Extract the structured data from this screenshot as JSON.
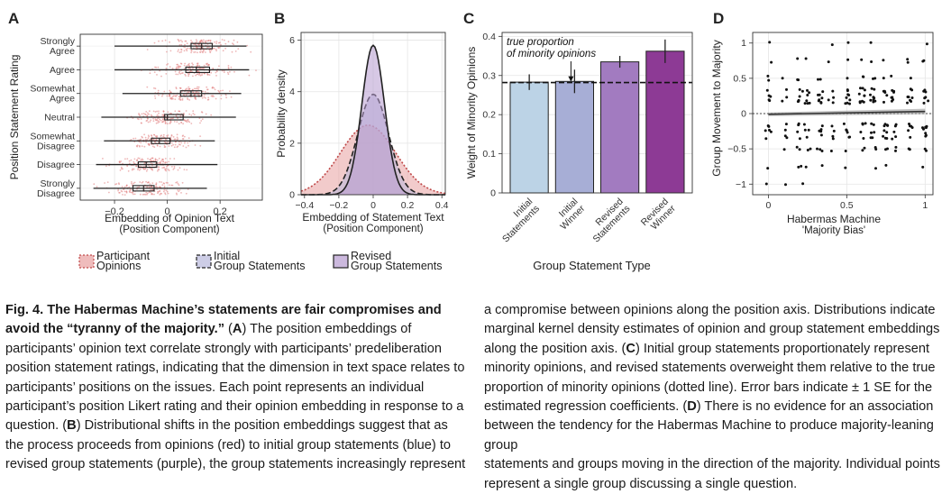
{
  "panel_letters": [
    "A",
    "B",
    "C",
    "D"
  ],
  "chart_data": [
    {
      "panel": "A",
      "type": "scatter",
      "subtype": "horizontal box plots with jittered points",
      "xlabel": "Embedding of Opinion Text",
      "xlabel_sub": "(Position Component)",
      "ylabel": "Position Statement Rating",
      "xlim": [
        -0.33,
        0.36
      ],
      "xticks": [
        -0.2,
        0.0,
        0.2
      ],
      "xtick_labels": [
        "−0.2",
        "0",
        "0.2"
      ],
      "categories": [
        [
          "Strongly",
          "Agree"
        ],
        [
          "Agree"
        ],
        [
          "Somewhat",
          "Agree"
        ],
        [
          "Neutral"
        ],
        [
          "Somewhat",
          "Disagree"
        ],
        [
          "Disagree"
        ],
        [
          "Strongly",
          "Disagree"
        ]
      ],
      "boxes": [
        {
          "whisker_low": -0.2,
          "q1": 0.09,
          "median": 0.13,
          "q3": 0.17,
          "whisker_high": 0.3
        },
        {
          "whisker_low": -0.2,
          "q1": 0.07,
          "median": 0.11,
          "q3": 0.16,
          "whisker_high": 0.31
        },
        {
          "whisker_low": -0.17,
          "q1": 0.05,
          "median": 0.09,
          "q3": 0.13,
          "whisker_high": 0.28
        },
        {
          "whisker_low": -0.25,
          "q1": -0.01,
          "median": 0.0,
          "q3": 0.06,
          "whisker_high": 0.26
        },
        {
          "whisker_low": -0.24,
          "q1": -0.06,
          "median": -0.03,
          "q3": 0.01,
          "whisker_high": 0.18
        },
        {
          "whisker_low": -0.27,
          "q1": -0.11,
          "median": -0.08,
          "q3": -0.04,
          "whisker_high": 0.19
        },
        {
          "whisker_low": -0.28,
          "q1": -0.13,
          "median": -0.09,
          "q3": -0.05,
          "whisker_high": 0.15
        }
      ],
      "point_color": "#e07a7a",
      "grid": true
    },
    {
      "panel": "B",
      "type": "area",
      "subtype": "kernel density estimates",
      "xlabel": "Embedding of Statement Text",
      "xlabel_sub": "(Position Component)",
      "ylabel": "Probability density",
      "xlim": [
        -0.42,
        0.42
      ],
      "ylim": [
        0,
        6.3
      ],
      "xticks": [
        -0.4,
        -0.2,
        0.0,
        0.2,
        0.4
      ],
      "xtick_labels": [
        "−0.4",
        "−0.2",
        "0",
        "0.2",
        "0.4"
      ],
      "yticks": [
        0,
        2,
        4,
        6
      ],
      "series": [
        {
          "name": "Participant Opinions",
          "center": -0.03,
          "sd": 0.16,
          "peak": 2.7,
          "fill": "#e8a0a0",
          "stroke": "#c04a4a",
          "dash": "dotted"
        },
        {
          "name": "Initial Group Statements",
          "center": 0.0,
          "sd": 0.09,
          "peak": 3.9,
          "fill": "#b8b8dc",
          "stroke": "#222222",
          "dash": "dashed"
        },
        {
          "name": "Revised Group Statements",
          "center": 0.0,
          "sd": 0.066,
          "peak": 5.8,
          "fill": "#b79bd0",
          "stroke": "#222222",
          "dash": "solid"
        }
      ],
      "grid": true
    },
    {
      "panel": "C",
      "type": "bar",
      "xlabel": "Group Statement Type",
      "ylabel": "Weight of Minority Opinions",
      "ylim": [
        0,
        0.41
      ],
      "yticks": [
        0,
        0.1,
        0.2,
        0.3,
        0.4
      ],
      "ytick_labels": [
        "0",
        "0.1",
        "0.2",
        "0.3",
        "0.4"
      ],
      "categories": [
        "Initial Statements",
        "Initial Winner",
        "Revised Statements",
        "Revised Winner"
      ],
      "category_lines": [
        [
          "Initial",
          "Statements"
        ],
        [
          "Initial",
          "Winner"
        ],
        [
          "Revised",
          "Statements"
        ],
        [
          "Revised",
          "Winner"
        ]
      ],
      "values": [
        0.283,
        0.285,
        0.335,
        0.362
      ],
      "errors": [
        0.02,
        0.03,
        0.015,
        0.03
      ],
      "colors": [
        "#bcd3e6",
        "#a7aed6",
        "#a27bc0",
        "#8d3a95"
      ],
      "reference_line": 0.282,
      "annotation": [
        "true proportion",
        "of minority opinions"
      ],
      "grid": true
    },
    {
      "panel": "D",
      "type": "scatter",
      "xlabel": "Habermas Machine",
      "xlabel_sub": "'Majority Bias'",
      "ylabel": "Group Movement to Majority",
      "xlim": [
        -0.1,
        1.05
      ],
      "ylim": [
        -1.15,
        1.15
      ],
      "xticks": [
        0,
        0.5,
        1
      ],
      "xtick_labels": [
        "0",
        "0.5",
        "1"
      ],
      "yticks": [
        -1,
        -0.5,
        0,
        0.5,
        1
      ],
      "ytick_labels": [
        "−1",
        "−0.5",
        "0",
        "0.5",
        "1"
      ],
      "trend": {
        "y_at_0": -0.01,
        "y_at_1": 0.03
      },
      "zero_line": true,
      "grid": true
    }
  ],
  "legend": [
    "Participant Opinions",
    "Initial Group Statements",
    "Revised Group Statements"
  ],
  "legend_lines": [
    [
      "Participant",
      "Opinions"
    ],
    [
      "Initial",
      "Group Statements"
    ],
    [
      "Revised",
      "Group Statements"
    ]
  ],
  "caption": {
    "left": [
      {
        "bold": "Fig. 4. The Habermas Machine’s statements are fair compromises and"
      },
      {
        "bold": "avoid the “tyranny of the majority.”",
        "text": " ("
      },
      {
        "bold": "A",
        "text": ") The position embeddings of"
      },
      {
        "text": "participants’ opinion text correlate strongly with participants’ predeliberation"
      },
      {
        "text": "position statement ratings, indicating that the dimension in text space relates to"
      },
      {
        "text": "participants’ positions on the issues. Each point represents an individual"
      },
      {
        "text": "participant’s position Likert rating and their opinion embedding in response to a"
      },
      {
        "text": "question. ("
      },
      {
        "bold": "B",
        "text": ") Distributional shifts in the position embeddings suggest that as"
      },
      {
        "text": "the process proceeds from opinions (red) to initial group statements (blue) to"
      },
      {
        "text": "revised group statements (purple), the group statements increasingly represent"
      }
    ],
    "right": [
      {
        "text": "a compromise between opinions along the position axis. Distributions indicate"
      },
      {
        "text": "marginal kernel density estimates of opinion and group statement embeddings"
      },
      {
        "text": "along the position axis. ("
      },
      {
        "bold": "C",
        "text": ") Initial group statements proportionately represent"
      },
      {
        "text": "minority opinions, and revised statements overweight them relative to the true"
      },
      {
        "text": "proportion of minority opinions (dotted line). Error bars indicate ± 1 SE for the"
      },
      {
        "text": "estimated regression coefficients. ("
      },
      {
        "bold": "D",
        "text": ") There is no evidence for an association"
      },
      {
        "text": "between the tendency for the Habermas Machine to produce majority-leaning group"
      },
      {
        "text": "statements and groups moving in the direction of the majority. Individual points"
      },
      {
        "text": "represent a single group discussing a single question."
      }
    ]
  }
}
